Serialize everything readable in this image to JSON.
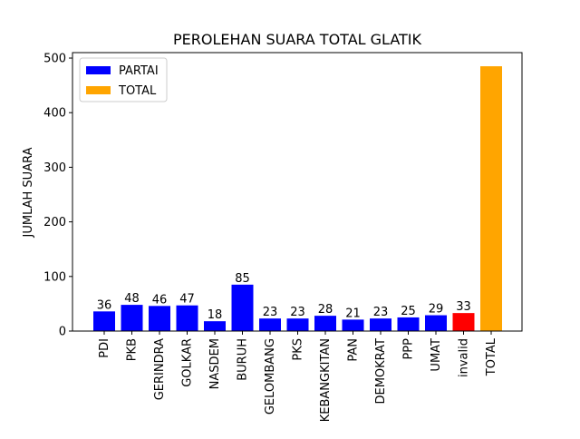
{
  "chart_data": {
    "type": "bar",
    "title": "PEROLEHAN SUARA TOTAL GLATIK",
    "xlabel": "",
    "ylabel": "JUMLAH SUARA",
    "ylim": [
      0,
      510
    ],
    "yticks": [
      0,
      100,
      200,
      300,
      400,
      500
    ],
    "grid": false,
    "legend_position": "top-left",
    "categories": [
      "PDI",
      "PKB",
      "GERINDRA",
      "GOLKAR",
      "NASDEM",
      "BURUH",
      "GELOMBANG",
      "PKS",
      "KEBANGKITAN",
      "PAN",
      "DEMOKRAT",
      "PPP",
      "UMAT",
      "invalid",
      "TOTAL"
    ],
    "values": [
      36,
      48,
      46,
      47,
      18,
      85,
      23,
      23,
      28,
      21,
      23,
      25,
      29,
      33,
      485
    ],
    "data_labels": [
      "36",
      "48",
      "46",
      "47",
      "18",
      "85",
      "23",
      "23",
      "28",
      "21",
      "23",
      "25",
      "29",
      "33",
      ""
    ],
    "bar_colors": [
      "#0000ff",
      "#0000ff",
      "#0000ff",
      "#0000ff",
      "#0000ff",
      "#0000ff",
      "#0000ff",
      "#0000ff",
      "#0000ff",
      "#0000ff",
      "#0000ff",
      "#0000ff",
      "#0000ff",
      "#ff0000",
      "#ffa500"
    ],
    "legend": [
      {
        "label": "PARTAI",
        "color": "#0000ff"
      },
      {
        "label": "TOTAL",
        "color": "#ffa500"
      }
    ]
  }
}
